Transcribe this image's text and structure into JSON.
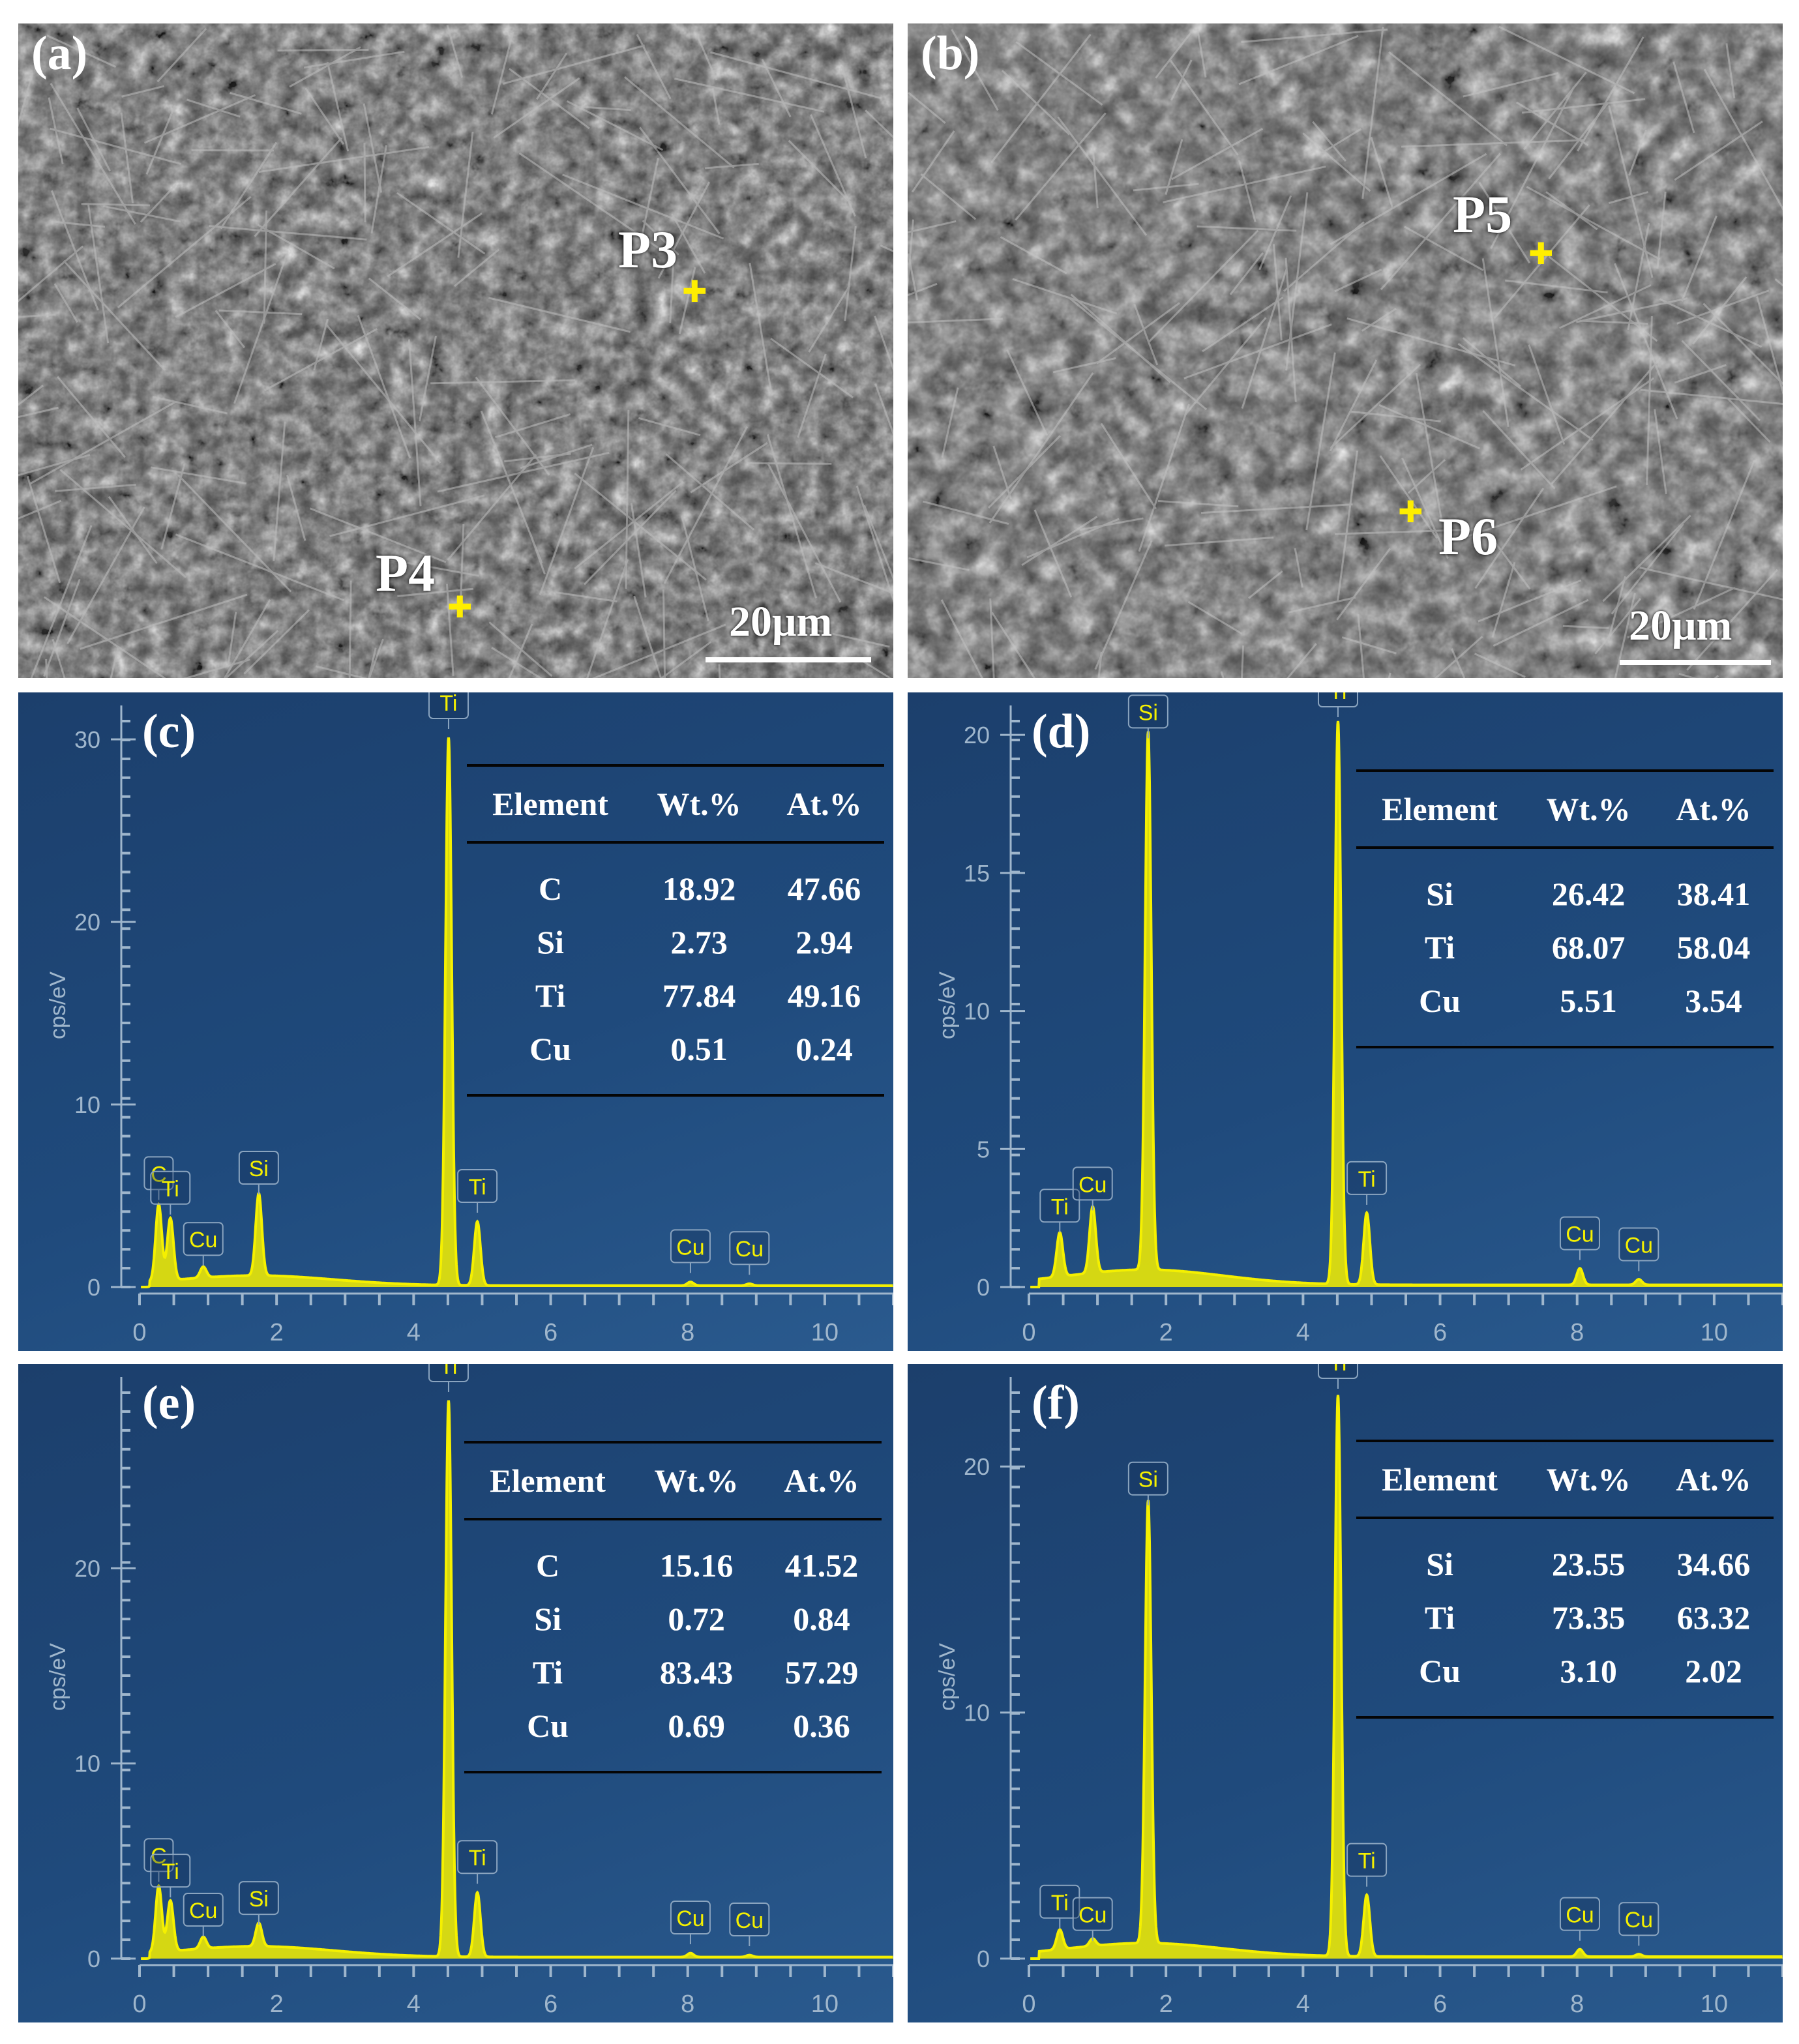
{
  "sem": [
    {
      "id": "a",
      "label": "(a)",
      "scale_text": "20μm",
      "points": [
        {
          "label": "P3",
          "marker": "✚"
        },
        {
          "label": "P4",
          "marker": "✚"
        }
      ]
    },
    {
      "id": "b",
      "label": "(b)",
      "scale_text": "20μm",
      "points": [
        {
          "label": "P5",
          "marker": "✚"
        },
        {
          "label": "P6",
          "marker": "✚"
        }
      ]
    }
  ],
  "colors": {
    "spectrum_line": "#f5f000",
    "background": "#1f4a7c",
    "marker": "#ffee00"
  },
  "chart_data": [
    {
      "id": "c",
      "panel_label": "(c)",
      "type": "line",
      "ylabel": "cps/eV",
      "xlim": [
        0,
        11
      ],
      "ylim": [
        0,
        31
      ],
      "x_ticks": [
        0,
        2,
        4,
        6,
        8,
        10
      ],
      "y_ticks": [
        0,
        10,
        20,
        30
      ],
      "peaks": [
        {
          "label": "C",
          "x": 0.28,
          "y": 4.2
        },
        {
          "label": "Ti",
          "x": 0.45,
          "y": 3.4
        },
        {
          "label": "Cu",
          "x": 0.93,
          "y": 0.6
        },
        {
          "label": "Si",
          "x": 1.74,
          "y": 4.5
        },
        {
          "label": "Ti",
          "x": 4.51,
          "y": 30.0
        },
        {
          "label": "Ti",
          "x": 4.93,
          "y": 3.5
        },
        {
          "label": "Cu",
          "x": 8.04,
          "y": 0.2
        },
        {
          "label": "Cu",
          "x": 8.9,
          "y": 0.1
        }
      ],
      "table": {
        "headers": [
          "Element",
          "Wt.%",
          "At.%"
        ],
        "rows": [
          [
            "C",
            "18.92",
            "47.66"
          ],
          [
            "Si",
            "2.73",
            "2.94"
          ],
          [
            "Ti",
            "77.84",
            "49.16"
          ],
          [
            "Cu",
            "0.51",
            "0.24"
          ]
        ]
      }
    },
    {
      "id": "d",
      "panel_label": "(d)",
      "type": "line",
      "ylabel": "cps/eV",
      "xlim": [
        0,
        11
      ],
      "ylim": [
        0,
        20.5
      ],
      "x_ticks": [
        0,
        2,
        4,
        6,
        8,
        10
      ],
      "y_ticks": [
        0,
        5,
        10,
        15,
        20
      ],
      "peaks": [
        {
          "label": "Ti",
          "x": 0.45,
          "y": 1.6
        },
        {
          "label": "Cu",
          "x": 0.93,
          "y": 2.4
        },
        {
          "label": "Si",
          "x": 1.74,
          "y": 19.5
        },
        {
          "label": "Ti",
          "x": 4.51,
          "y": 20.4
        },
        {
          "label": "Ti",
          "x": 4.93,
          "y": 2.6
        },
        {
          "label": "Cu",
          "x": 8.04,
          "y": 0.6
        },
        {
          "label": "Cu",
          "x": 8.9,
          "y": 0.2
        }
      ],
      "table": {
        "headers": [
          "Element",
          "Wt.%",
          "At.%"
        ],
        "rows": [
          [
            "Si",
            "26.42",
            "38.41"
          ],
          [
            "Ti",
            "68.07",
            "58.04"
          ],
          [
            "Cu",
            "5.51",
            "3.54"
          ]
        ]
      }
    },
    {
      "id": "e",
      "panel_label": "(e)",
      "type": "line",
      "ylabel": "cps/eV",
      "xlim": [
        0,
        11
      ],
      "ylim": [
        0,
        29
      ],
      "x_ticks": [
        0,
        2,
        4,
        6,
        8,
        10
      ],
      "y_ticks": [
        0,
        10,
        20
      ],
      "peaks": [
        {
          "label": "C",
          "x": 0.28,
          "y": 3.4
        },
        {
          "label": "Ti",
          "x": 0.45,
          "y": 2.6
        },
        {
          "label": "Cu",
          "x": 0.93,
          "y": 0.6
        },
        {
          "label": "Si",
          "x": 1.74,
          "y": 1.2
        },
        {
          "label": "Ti",
          "x": 4.51,
          "y": 28.5
        },
        {
          "label": "Ti",
          "x": 4.93,
          "y": 3.3
        },
        {
          "label": "Cu",
          "x": 8.04,
          "y": 0.2
        },
        {
          "label": "Cu",
          "x": 8.9,
          "y": 0.1
        }
      ],
      "table": {
        "headers": [
          "Element",
          "Wt.%",
          "At.%"
        ],
        "rows": [
          [
            "C",
            "15.16",
            "41.52"
          ],
          [
            "Si",
            "0.72",
            "0.84"
          ],
          [
            "Ti",
            "83.43",
            "57.29"
          ],
          [
            "Cu",
            "0.69",
            "0.36"
          ]
        ]
      }
    },
    {
      "id": "f",
      "panel_label": "(f)",
      "type": "line",
      "ylabel": "cps/eV",
      "xlim": [
        0,
        11
      ],
      "ylim": [
        0,
        23
      ],
      "x_ticks": [
        0,
        2,
        4,
        6,
        8,
        10
      ],
      "y_ticks": [
        0,
        10,
        20
      ],
      "peaks": [
        {
          "label": "Ti",
          "x": 0.45,
          "y": 0.8
        },
        {
          "label": "Cu",
          "x": 0.93,
          "y": 0.3
        },
        {
          "label": "Si",
          "x": 1.74,
          "y": 18.0
        },
        {
          "label": "Ti",
          "x": 4.51,
          "y": 22.8
        },
        {
          "label": "Ti",
          "x": 4.93,
          "y": 2.5
        },
        {
          "label": "Cu",
          "x": 8.04,
          "y": 0.3
        },
        {
          "label": "Cu",
          "x": 8.9,
          "y": 0.1
        }
      ],
      "table": {
        "headers": [
          "Element",
          "Wt.%",
          "At.%"
        ],
        "rows": [
          [
            "Si",
            "23.55",
            "34.66"
          ],
          [
            "Ti",
            "73.35",
            "63.32"
          ],
          [
            "Cu",
            "3.10",
            "2.02"
          ]
        ]
      }
    }
  ]
}
